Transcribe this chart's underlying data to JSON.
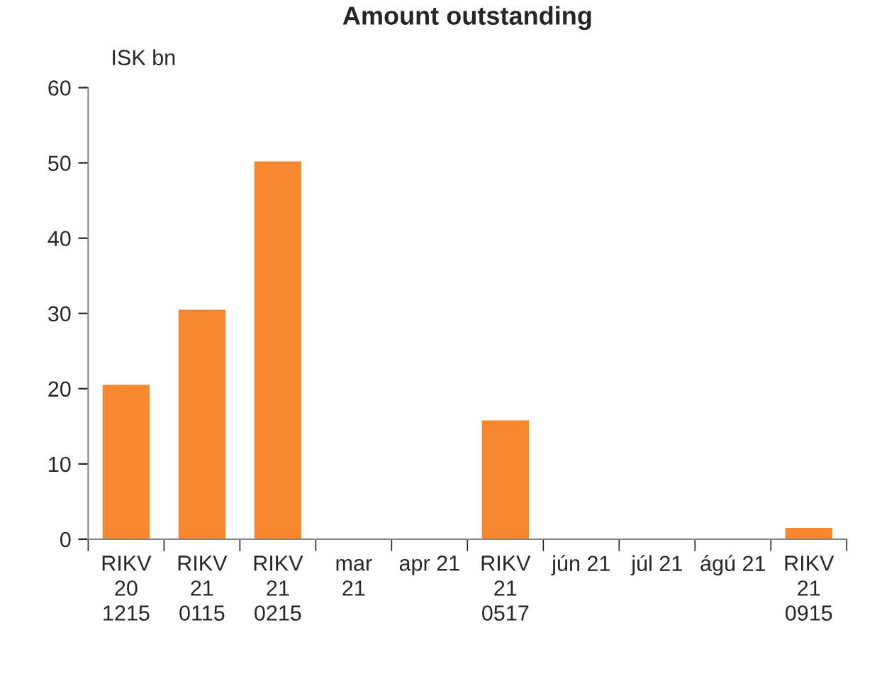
{
  "chart_data": {
    "type": "bar",
    "title": "Amount outstanding",
    "ylabel": "ISK bn",
    "categories": [
      "RIKV\n20\n1215",
      "RIKV\n21\n0115",
      "RIKV\n21\n0215",
      "mar\n21",
      "apr 21",
      "RIKV\n21\n0517",
      "jún 21",
      "júl 21",
      "ágú 21",
      "RIKV\n21\n0915"
    ],
    "values": [
      20.5,
      30.5,
      50.2,
      null,
      null,
      15.8,
      null,
      null,
      null,
      1.5
    ],
    "color": "#f7882f",
    "ylim": [
      0,
      60
    ],
    "yticks": [
      0,
      10,
      20,
      30,
      40,
      50,
      60
    ],
    "grid": false
  }
}
